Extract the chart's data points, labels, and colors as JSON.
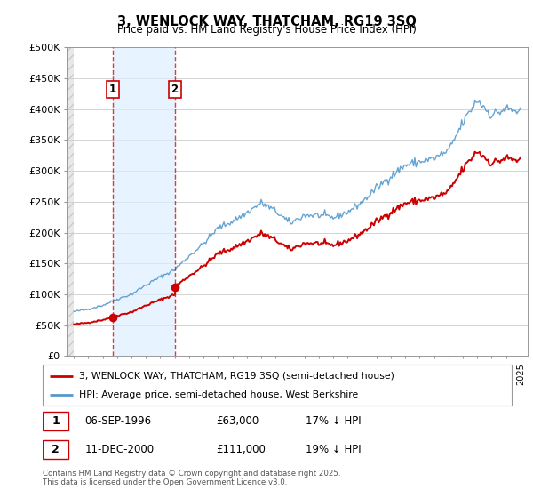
{
  "title": "3, WENLOCK WAY, THATCHAM, RG19 3SQ",
  "subtitle": "Price paid vs. HM Land Registry's House Price Index (HPI)",
  "background_color": "#ffffff",
  "plot_bg_color": "#ffffff",
  "grid_color": "#cccccc",
  "red_line_color": "#cc0000",
  "blue_line_color": "#5599cc",
  "hatch_fill_color": "#dddddd",
  "span_color": "#ddeeff",
  "purchase1_date_x": 1996.68,
  "purchase1_price": 63000,
  "purchase2_date_x": 2001.0,
  "purchase2_price": 111000,
  "ylim_min": 0,
  "ylim_max": 500000,
  "xlim_min": 1993.5,
  "xlim_max": 2025.5,
  "legend_entry1": "3, WENLOCK WAY, THATCHAM, RG19 3SQ (semi-detached house)",
  "legend_entry2": "HPI: Average price, semi-detached house, West Berkshire",
  "ann1_num": "1",
  "ann1_date": "06-SEP-1996",
  "ann1_price": "£63,000",
  "ann1_hpi": "17% ↓ HPI",
  "ann2_num": "2",
  "ann2_date": "11-DEC-2000",
  "ann2_price": "£111,000",
  "ann2_hpi": "19% ↓ HPI",
  "footer": "Contains HM Land Registry data © Crown copyright and database right 2025.\nThis data is licensed under the Open Government Licence v3.0.",
  "yticks": [
    0,
    50000,
    100000,
    150000,
    200000,
    250000,
    300000,
    350000,
    400000,
    450000,
    500000
  ],
  "ytick_labels": [
    "£0",
    "£50K",
    "£100K",
    "£150K",
    "£200K",
    "£250K",
    "£300K",
    "£350K",
    "£400K",
    "£450K",
    "£500K"
  ],
  "hpi_years": [
    1994,
    1995,
    1996,
    1997,
    1998,
    1999,
    2000,
    2001,
    2002,
    2003,
    2004,
    2005,
    2006,
    2007,
    2008,
    2009,
    2010,
    2011,
    2012,
    2013,
    2014,
    2015,
    2016,
    2017,
    2018,
    2019,
    2020,
    2021,
    2022,
    2023,
    2024,
    2025
  ],
  "hpi_prices": [
    72000,
    76000,
    82000,
    92000,
    100000,
    115000,
    128000,
    140000,
    162000,
    182000,
    207000,
    218000,
    232000,
    248000,
    235000,
    215000,
    228000,
    228000,
    224000,
    233000,
    249000,
    272000,
    291000,
    309000,
    315000,
    320000,
    332000,
    378000,
    415000,
    390000,
    400000,
    395000
  ],
  "noise_seed": 42,
  "noise_scale": 0.012
}
